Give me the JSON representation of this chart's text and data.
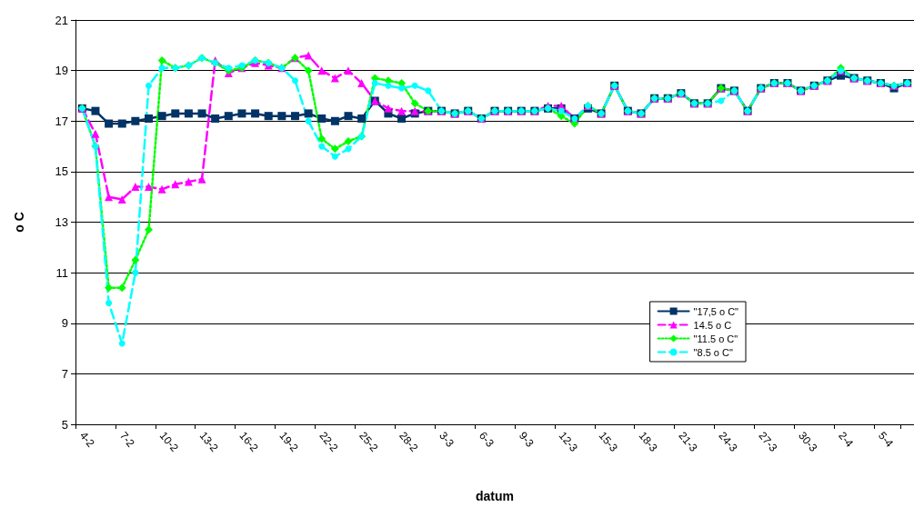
{
  "chart_data": {
    "type": "line",
    "xlabel": "datum",
    "ylabel": "o C",
    "categories": [
      "4-2",
      null,
      null,
      "7-2",
      null,
      null,
      "10-2",
      null,
      null,
      "13-2",
      null,
      null,
      "16-2",
      null,
      null,
      "19-2",
      null,
      null,
      "22-2",
      null,
      null,
      "25-2",
      null,
      null,
      "28-2",
      null,
      null,
      "3-3",
      null,
      null,
      "6-3",
      null,
      null,
      "9-3",
      null,
      null,
      "12-3",
      null,
      null,
      "15-3",
      null,
      null,
      "18-3",
      null,
      null,
      "21-3",
      null,
      null,
      "24-3",
      null,
      null,
      "27-3",
      null,
      null,
      "30-3",
      null,
      null,
      "2-4",
      null,
      null,
      "5-4",
      null,
      null
    ],
    "series": [
      {
        "name": "\"17,5 o C\"",
        "color": "#003366",
        "marker": "square",
        "line_style": "solid",
        "values": [
          17.5,
          17.4,
          16.9,
          16.9,
          17.0,
          17.1,
          17.2,
          17.3,
          17.3,
          17.3,
          17.1,
          17.2,
          17.3,
          17.3,
          17.2,
          17.2,
          17.2,
          17.3,
          17.1,
          17.0,
          17.2,
          17.1,
          17.8,
          17.3,
          17.1,
          17.3,
          17.4,
          17.4,
          17.3,
          17.4,
          17.1,
          17.4,
          17.4,
          17.4,
          17.4,
          17.5,
          17.5,
          17.1,
          17.5,
          17.3,
          18.4,
          17.4,
          17.3,
          17.9,
          17.9,
          18.1,
          17.7,
          17.7,
          18.3,
          18.2,
          17.4,
          18.3,
          18.5,
          18.5,
          18.2,
          18.4,
          18.6,
          18.8,
          18.7,
          18.6,
          18.5,
          18.3,
          18.5
        ]
      },
      {
        "name": "14.5 o C",
        "color": "#ff00ff",
        "marker": "triangle",
        "line_style": "dashed",
        "values": [
          17.5,
          16.5,
          14.0,
          13.9,
          14.4,
          14.4,
          14.3,
          14.5,
          14.6,
          14.7,
          19.4,
          18.9,
          19.1,
          19.3,
          19.2,
          19.1,
          19.5,
          19.6,
          19.0,
          18.7,
          19.0,
          18.5,
          17.8,
          17.5,
          17.4,
          17.4,
          17.4,
          17.4,
          17.3,
          17.4,
          17.1,
          17.4,
          17.4,
          17.4,
          17.4,
          17.6,
          17.6,
          17.1,
          17.6,
          17.3,
          18.4,
          17.4,
          17.3,
          17.9,
          17.9,
          18.1,
          17.7,
          17.7,
          18.3,
          18.2,
          17.4,
          18.3,
          18.5,
          18.5,
          18.2,
          18.4,
          18.6,
          19.0,
          18.7,
          18.6,
          18.5,
          18.4,
          18.5
        ]
      },
      {
        "name": "\"11.5 o C\"",
        "color": "#00ff00",
        "marker": "diamond",
        "line_style": "dotted",
        "values": [
          17.5,
          16.0,
          10.4,
          10.4,
          11.5,
          12.7,
          19.4,
          19.1,
          19.2,
          19.5,
          19.3,
          19.0,
          19.1,
          19.4,
          19.3,
          19.1,
          19.5,
          19.0,
          16.3,
          15.9,
          16.2,
          16.4,
          18.7,
          18.6,
          18.5,
          17.7,
          17.4,
          17.4,
          17.3,
          17.4,
          17.1,
          17.4,
          17.4,
          17.4,
          17.4,
          17.5,
          17.2,
          16.9,
          17.6,
          17.3,
          18.4,
          17.4,
          17.3,
          17.9,
          17.9,
          18.1,
          17.7,
          17.7,
          18.3,
          18.2,
          17.4,
          18.3,
          18.5,
          18.5,
          18.2,
          18.4,
          18.6,
          19.1,
          18.7,
          18.6,
          18.5,
          18.4,
          18.5
        ]
      },
      {
        "name": "\"8.5 o C\"",
        "color": "#00ffff",
        "marker": "circle",
        "line_style": "dashed",
        "values": [
          17.5,
          16.0,
          9.8,
          8.2,
          11.0,
          18.4,
          19.1,
          19.1,
          19.2,
          19.5,
          19.3,
          19.1,
          19.2,
          19.4,
          19.3,
          19.1,
          18.6,
          17.0,
          16.0,
          15.6,
          15.9,
          16.4,
          18.5,
          18.4,
          18.3,
          18.4,
          18.2,
          17.4,
          17.3,
          17.4,
          17.1,
          17.4,
          17.4,
          17.4,
          17.4,
          17.5,
          17.4,
          17.1,
          17.6,
          17.3,
          18.4,
          17.4,
          17.3,
          17.9,
          17.9,
          18.1,
          17.7,
          17.7,
          17.8,
          18.2,
          17.4,
          18.3,
          18.5,
          18.5,
          18.2,
          18.4,
          18.6,
          19.0,
          18.7,
          18.6,
          18.5,
          18.4,
          18.5
        ]
      }
    ],
    "ylim": [
      5,
      21
    ],
    "yticks": [
      5,
      7,
      9,
      11,
      13,
      15,
      17,
      19,
      21
    ],
    "grid": "y",
    "legend": "bottom right"
  }
}
